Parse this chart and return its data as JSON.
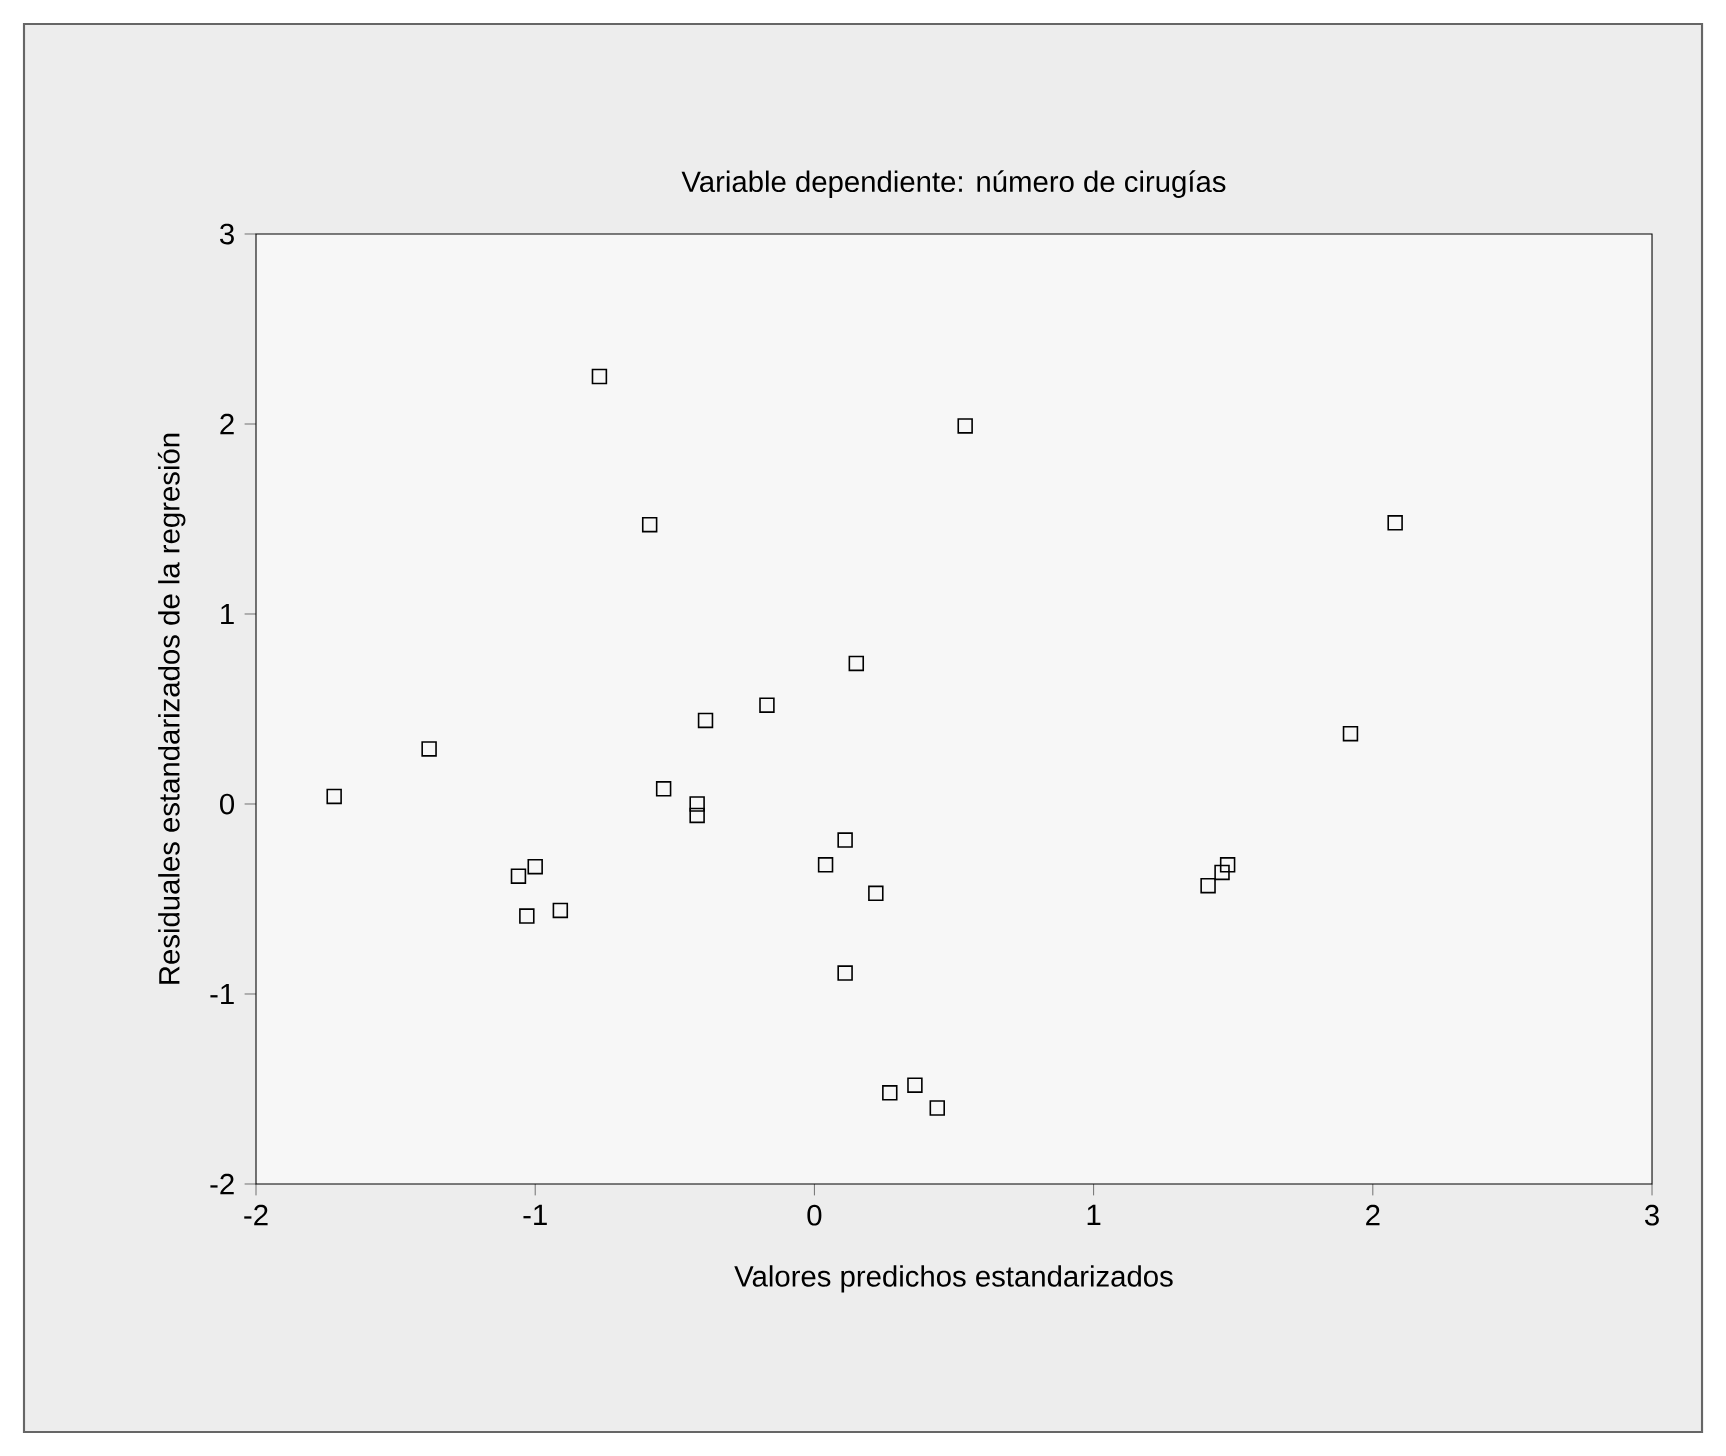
{
  "chart_data": {
    "type": "scatter",
    "title": "Variable dependiente: número de cirugías",
    "xlabel": "Valores predichos estandarizados",
    "ylabel": "Residuales estandarizados de la regresión",
    "marker": "square",
    "color": "#000000",
    "x": [
      -1.72,
      -1.38,
      -1.06,
      -1.0,
      -1.03,
      -0.91,
      -0.77,
      -0.59,
      -0.54,
      -0.39,
      -0.42,
      -0.42,
      -0.17,
      0.04,
      0.11,
      0.15,
      0.22,
      0.11,
      0.27,
      0.36,
      0.44,
      0.54,
      1.41,
      1.46,
      1.48,
      1.92,
      2.08
    ],
    "values": [
      0.04,
      0.29,
      -0.38,
      -0.33,
      -0.59,
      -0.56,
      2.25,
      1.47,
      0.08,
      0.44,
      0.0,
      -0.06,
      0.52,
      -0.32,
      -0.19,
      0.74,
      -0.47,
      -0.89,
      -1.52,
      -1.48,
      -1.6,
      1.99,
      -0.43,
      -0.36,
      -0.32,
      0.37,
      1.48
    ],
    "xlim": [
      -2,
      3
    ],
    "ylim": [
      -2,
      3
    ],
    "xticks": [
      -2,
      -1,
      0,
      1,
      2,
      3
    ],
    "yticks": [
      -2,
      -1,
      0,
      1,
      2,
      3
    ]
  }
}
